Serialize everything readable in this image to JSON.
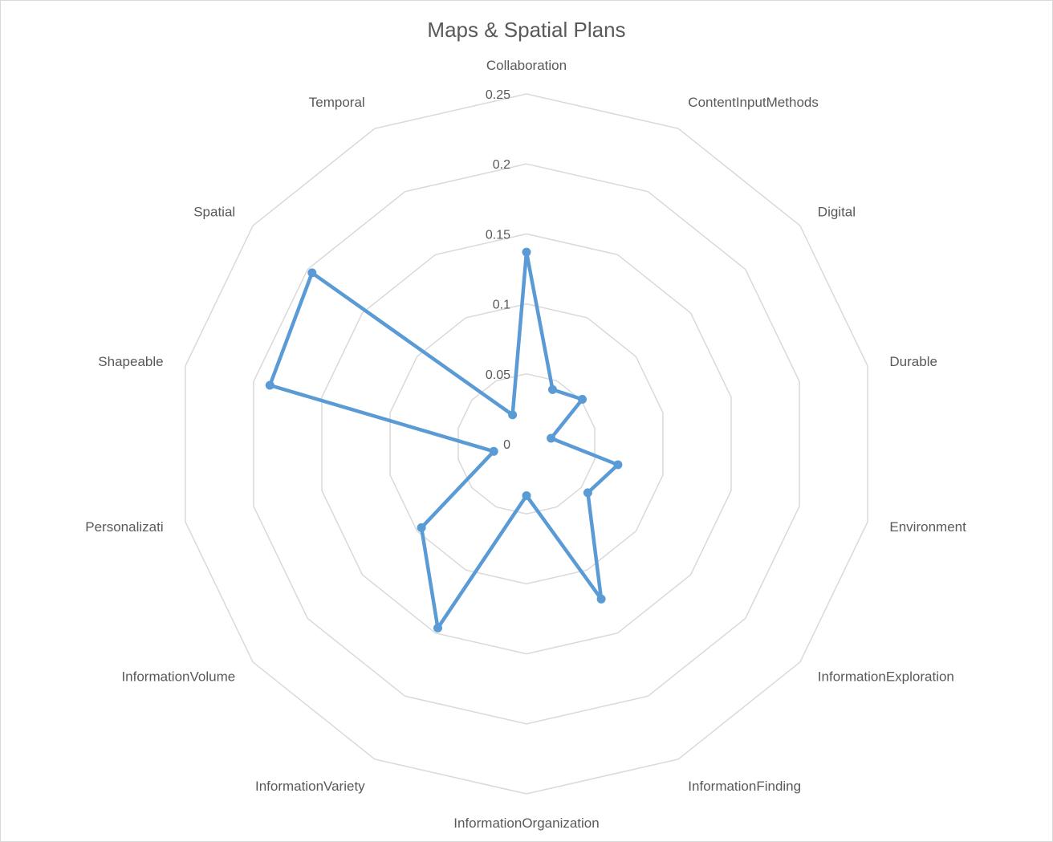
{
  "chart_data": {
    "type": "radar",
    "title": "Maps & Spatial Plans",
    "categories": [
      "Collaboration",
      "ContentInputMethods",
      "Digital",
      "Durable",
      "Environment",
      "InformationExploration",
      "InformationFinding",
      "InformationOrganization",
      "InformationVariety",
      "InformationVolume",
      "Personalizati",
      "Shapeable",
      "Spatial",
      "Temporal"
    ],
    "radial_ticks": [
      "0",
      "0.05",
      "0.1",
      "0.15",
      "0.2",
      "0.25"
    ],
    "rlim": [
      0,
      0.25
    ],
    "grid": true,
    "series": [
      {
        "values": [
          0.137,
          0.043,
          0.051,
          0.018,
          0.067,
          0.056,
          0.123,
          0.037,
          0.146,
          0.096,
          0.024,
          0.188,
          0.196,
          0.023
        ],
        "color": "#5b9bd5"
      }
    ]
  }
}
